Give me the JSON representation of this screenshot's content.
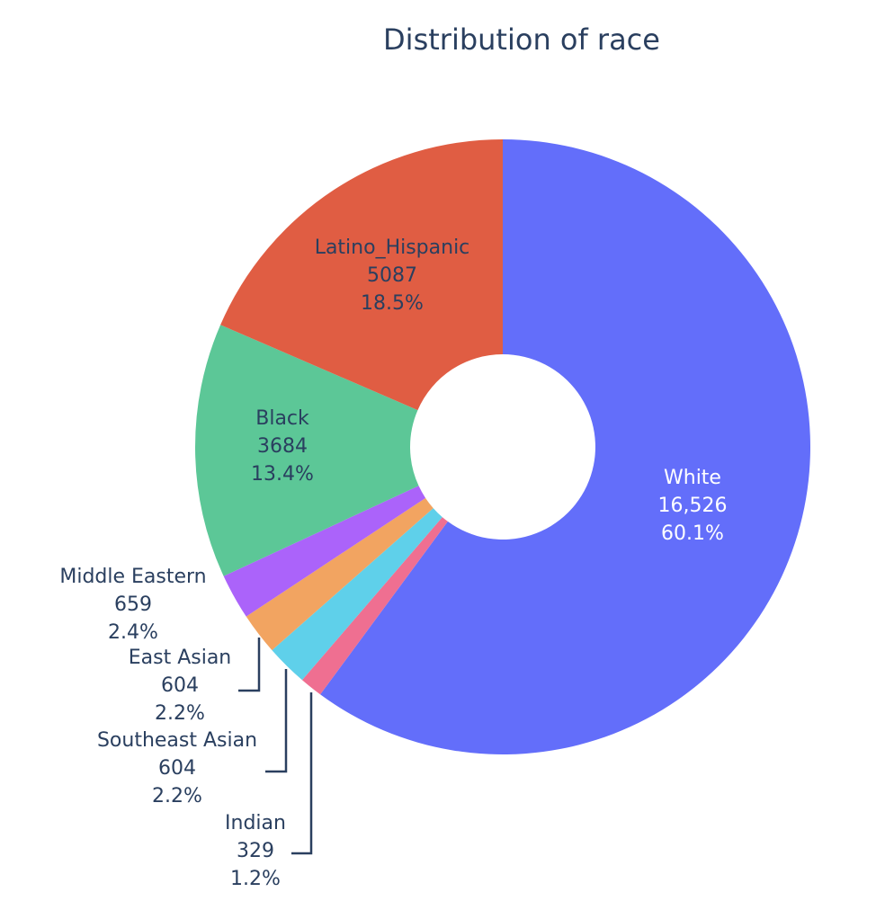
{
  "chart_data": {
    "type": "pie",
    "title": "Distribution of race",
    "hole": true,
    "slices": [
      {
        "label": "White",
        "value_text": "16,526",
        "percent_text": "60.1%",
        "value": 16526,
        "color": "#636efa",
        "text_color": "#ffffff",
        "label_position": "inside"
      },
      {
        "label": "Indian",
        "value_text": "329",
        "percent_text": "1.2%",
        "value": 329,
        "color": "#ef6f91",
        "text_color": "#2a3f5f",
        "label_position": "outside"
      },
      {
        "label": "Southeast Asian",
        "value_text": "604",
        "percent_text": "2.2%",
        "value": 604,
        "color": "#5fd0ea",
        "text_color": "#2a3f5f",
        "label_position": "outside"
      },
      {
        "label": "East Asian",
        "value_text": "604",
        "percent_text": "2.2%",
        "value": 604,
        "color": "#f2a461",
        "text_color": "#2a3f5f",
        "label_position": "outside"
      },
      {
        "label": "Middle Eastern",
        "value_text": "659",
        "percent_text": "2.4%",
        "value": 659,
        "color": "#ab63fa",
        "text_color": "#2a3f5f",
        "label_position": "outside"
      },
      {
        "label": "Black",
        "value_text": "3684",
        "percent_text": "13.4%",
        "value": 3684,
        "color": "#5cc797",
        "text_color": "#2a3f5f",
        "label_position": "inside"
      },
      {
        "label": "Latino_Hispanic",
        "value_text": "5087",
        "percent_text": "18.5%",
        "value": 5087,
        "color": "#e05d43",
        "text_color": "#2a3f5f",
        "label_position": "inside"
      }
    ]
  }
}
